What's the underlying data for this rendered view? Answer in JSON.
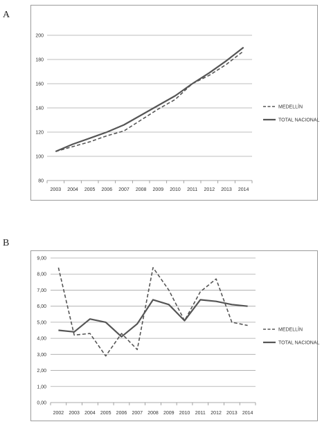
{
  "panels": {
    "a": {
      "label": "A"
    },
    "b": {
      "label": "B"
    }
  },
  "colors": {
    "series": "#555555",
    "grid": "#a6a6a6",
    "axis": "#8c8c8c",
    "border": "#9a9a9a"
  },
  "chart_data": [
    {
      "type": "line",
      "panel": "A",
      "title": "",
      "xlabel": "",
      "ylabel": "",
      "categories": [
        "2003",
        "2004",
        "2005",
        "2006",
        "2007",
        "2008",
        "2009",
        "2010",
        "2011",
        "2012",
        "2013",
        "2014"
      ],
      "ylim": [
        80,
        200
      ],
      "yticks": [
        80,
        100,
        120,
        140,
        160,
        180,
        200
      ],
      "ytick_labels": [
        "80",
        "100",
        "120",
        "140",
        "160",
        "180",
        "200"
      ],
      "grid": true,
      "legend_position": "right",
      "series": [
        {
          "name": "MEDELLÍN",
          "style": "dashed",
          "values": [
            104,
            108,
            112,
            117,
            121,
            130,
            139,
            147,
            160,
            167,
            176,
            187
          ]
        },
        {
          "name": "TOTAL NACIONAL",
          "style": "solid",
          "values": [
            104,
            110,
            115,
            120,
            126,
            134,
            142,
            150,
            160,
            169,
            179,
            190
          ]
        }
      ]
    },
    {
      "type": "line",
      "panel": "B",
      "title": "",
      "xlabel": "",
      "ylabel": "",
      "categories": [
        "2002",
        "2003",
        "2004",
        "2005",
        "2006",
        "2007",
        "2008",
        "2009",
        "2010",
        "2011",
        "2012",
        "2013",
        "2014"
      ],
      "ylim": [
        0,
        9
      ],
      "yticks": [
        0,
        1,
        2,
        3,
        4,
        5,
        6,
        7,
        8,
        9
      ],
      "ytick_labels": [
        "0,00",
        "1,00",
        "2,00",
        "3,00",
        "4,00",
        "5,00",
        "6,00",
        "7,00",
        "8,00",
        "9,00"
      ],
      "grid": true,
      "legend_position": "right",
      "series": [
        {
          "name": "MEDELLÍN",
          "style": "dashed",
          "values": [
            8.4,
            4.2,
            4.3,
            2.9,
            4.3,
            3.3,
            8.4,
            7.0,
            5.1,
            6.9,
            7.7,
            5.0,
            4.8
          ]
        },
        {
          "name": "TOTAL NACIONAL",
          "style": "solid",
          "values": [
            4.5,
            4.4,
            5.2,
            5.0,
            4.1,
            4.9,
            6.4,
            6.1,
            5.1,
            6.4,
            6.3,
            6.1,
            6.0
          ]
        }
      ]
    }
  ]
}
